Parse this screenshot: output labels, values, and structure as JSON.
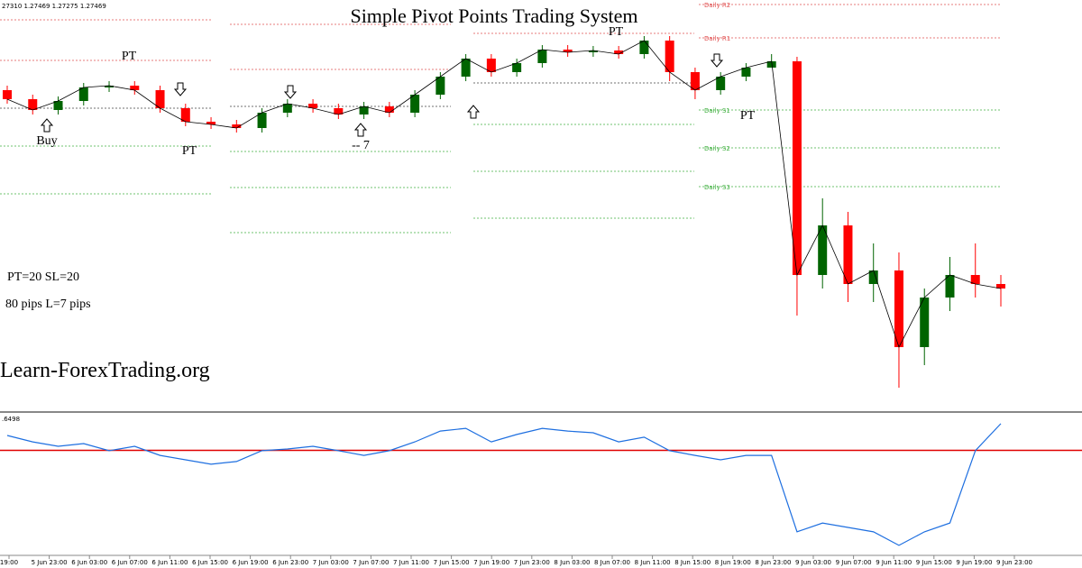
{
  "chart_data": {
    "type": "candlestick",
    "title": "Simple Pivot Points Trading System",
    "header": "27310 1.27469 1.27275 1.27469",
    "watermark": "Learn-ForexTrading.org",
    "notes": [
      "PT=20 SL=20",
      "80 pips L=7 pips"
    ],
    "annotations": [
      "Buy",
      "PT",
      "PT",
      "-- 7",
      "PT",
      "PT"
    ],
    "pivot_labels": [
      "Daily R2",
      "Daily R1",
      "Daily S1",
      "Daily S2",
      "Daily S3"
    ],
    "pivot_values": [
      1.2778,
      1.27632,
      1.27312,
      1.27144,
      1.26972
    ],
    "ylim": [
      1.26,
      1.278
    ],
    "up_color": "#006400",
    "down_color": "#ff0000",
    "open": [
      1.274,
      1.2736,
      1.27312,
      1.27352,
      1.27412,
      1.2742,
      1.274,
      1.2732,
      1.2726,
      1.27248,
      1.27232,
      1.273,
      1.2734,
      1.2732,
      1.27292,
      1.27328,
      1.273,
      1.2738,
      1.2746,
      1.2754,
      1.2748,
      1.2752,
      1.2758,
      1.27568,
      1.27576,
      1.2756,
      1.2762,
      1.2748,
      1.274,
      1.2746,
      1.275,
      1.27528,
      1.2658,
      1.268,
      1.2654,
      1.266,
      1.2626,
      1.2648,
      1.2658,
      1.2654
    ],
    "high": [
      1.2742,
      1.2738,
      1.27372,
      1.27432,
      1.2744,
      1.2744,
      1.2742,
      1.2734,
      1.2728,
      1.27268,
      1.2732,
      1.2736,
      1.2736,
      1.2734,
      1.27348,
      1.27348,
      1.274,
      1.2748,
      1.2756,
      1.2756,
      1.2754,
      1.276,
      1.276,
      1.27596,
      1.27596,
      1.2764,
      1.2764,
      1.275,
      1.2748,
      1.2752,
      1.2756,
      1.27548,
      1.2692,
      1.2686,
      1.2672,
      1.2668,
      1.2652,
      1.2666,
      1.2672,
      1.2658
    ],
    "low": [
      1.2734,
      1.27292,
      1.27292,
      1.27332,
      1.27392,
      1.2738,
      1.273,
      1.2724,
      1.27228,
      1.27212,
      1.27212,
      1.2728,
      1.273,
      1.27272,
      1.27272,
      1.2728,
      1.2728,
      1.2736,
      1.2744,
      1.2746,
      1.2746,
      1.275,
      1.27548,
      1.27548,
      1.2754,
      1.2754,
      1.2744,
      1.2736,
      1.2738,
      1.2744,
      1.27508,
      1.264,
      1.2652,
      1.2646,
      1.2646,
      1.2608,
      1.2618,
      1.2642,
      1.2648,
      1.2644
    ],
    "close": [
      1.2736,
      1.27312,
      1.27352,
      1.27412,
      1.2742,
      1.274,
      1.2732,
      1.2726,
      1.27248,
      1.27232,
      1.273,
      1.2734,
      1.2732,
      1.27292,
      1.27328,
      1.273,
      1.2738,
      1.2746,
      1.2754,
      1.2748,
      1.2752,
      1.2758,
      1.27568,
      1.27576,
      1.2756,
      1.2762,
      1.2748,
      1.274,
      1.2746,
      1.275,
      1.27528,
      1.2658,
      1.268,
      1.2654,
      1.266,
      1.2626,
      1.2648,
      1.2658,
      1.2654,
      1.2652
    ],
    "indicator": {
      "label": ".6498",
      "color": "#1e6fe0",
      "level": 60,
      "level_color": "#e00000",
      "ylim": [
        30,
        70
      ],
      "values": [
        64.4,
        62.5,
        61.2,
        62,
        59.9,
        61.2,
        58.5,
        57.2,
        55.9,
        56.7,
        59.9,
        60.4,
        61.2,
        59.9,
        58.5,
        59.9,
        62.5,
        65.7,
        66.5,
        62.5,
        64.7,
        66.5,
        65.7,
        65.2,
        62.5,
        63.9,
        59.9,
        58.5,
        57.2,
        58.5,
        58.5,
        35.9,
        38.5,
        37.2,
        35.9,
        31.9,
        35.9,
        38.5,
        59.9,
        67.9
      ]
    },
    "time_labels": [
      "19:00",
      "5 Jun 23:00",
      "6 Jun 03:00",
      "6 Jun 07:00",
      "6 Jun 11:00",
      "6 Jun 15:00",
      "6 Jun 19:00",
      "6 Jun 23:00",
      "7 Jun 03:00",
      "7 Jun 07:00",
      "7 Jun 11:00",
      "7 Jun 15:00",
      "7 Jun 19:00",
      "7 Jun 23:00",
      "8 Jun 03:00",
      "8 Jun 07:00",
      "8 Jun 11:00",
      "8 Jun 15:00",
      "8 Jun 19:00",
      "8 Jun 23:00",
      "9 Jun 03:00",
      "9 Jun 07:00",
      "9 Jun 11:00",
      "9 Jun 15:00",
      "9 Jun 19:00",
      "9 Jun 23:00"
    ]
  }
}
